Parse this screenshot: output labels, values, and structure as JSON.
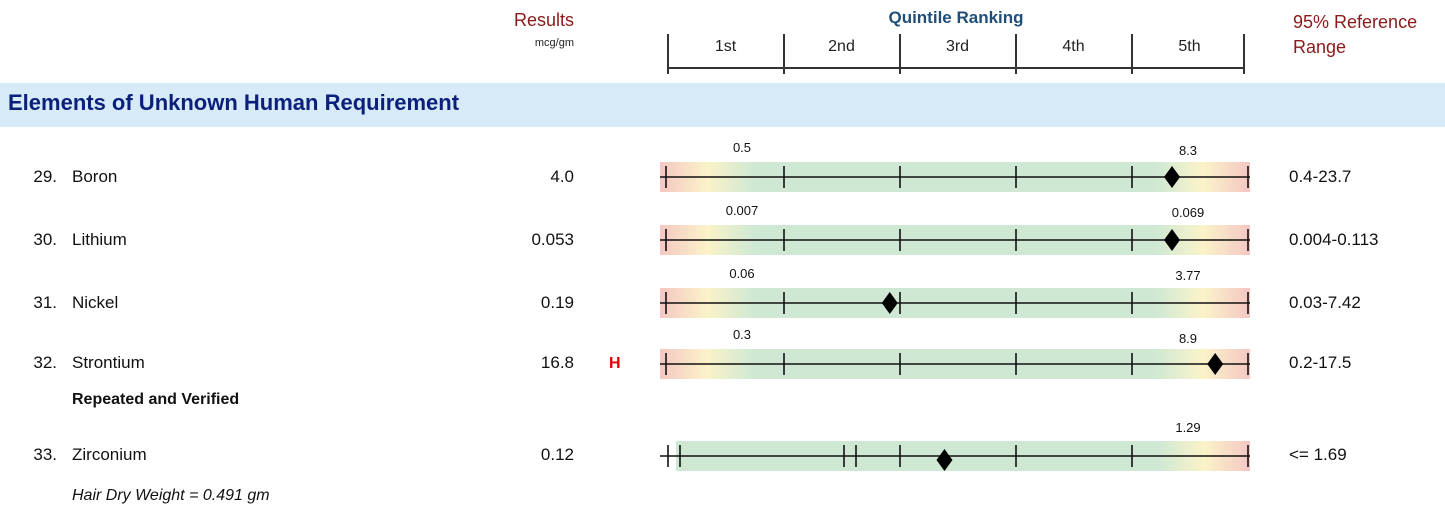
{
  "header": {
    "results_label": "Results",
    "unit": "mcg/gm",
    "quintile_title": "Quintile Ranking",
    "reference_label_line1": "95% Reference",
    "reference_label_line2": "Range",
    "quintiles": [
      "1st",
      "2nd",
      "3rd",
      "4th",
      "5th"
    ]
  },
  "section": {
    "title": "Elements of Unknown Human Requirement"
  },
  "rows": [
    {
      "num": "29.",
      "name": "Boron",
      "result": "4.0",
      "flag": "",
      "low_label": "0.5",
      "high_label": "8.3",
      "range": "0.4-23.7",
      "percentile": 0.875
    },
    {
      "num": "30.",
      "name": "Lithium",
      "result": "0.053",
      "flag": "",
      "low_label": "0.007",
      "high_label": "0.069",
      "range": "0.004-0.113",
      "percentile": 0.875
    },
    {
      "num": "31.",
      "name": "Nickel",
      "result": "0.19",
      "flag": "",
      "low_label": "0.06",
      "high_label": "3.77",
      "range": "0.03-7.42",
      "percentile": 0.385
    },
    {
      "num": "32.",
      "name": "Strontium",
      "result": "16.8",
      "flag": "H",
      "low_label": "0.3",
      "high_label": "8.9",
      "range": "0.2-17.5",
      "percentile": 0.95
    },
    {
      "num": "33.",
      "name": "Zirconium",
      "result": "0.12",
      "flag": "",
      "low_label": "",
      "high_label": "1.29",
      "range": "<= 1.69",
      "percentile": 0.48
    }
  ],
  "note": "Repeated and Verified",
  "footer": "Hair Dry Weight = 0.491 gm",
  "colors": {
    "results_header": "#8b1a1a",
    "quintile_header": "#1f4e79",
    "section_bg": "#d6eaf8",
    "section_text": "#0c1f7a",
    "flag_high": "#e00000",
    "band_green": "#cfe8d4",
    "band_red": "#f4c7c3",
    "band_yellow": "#fbf3c9"
  }
}
